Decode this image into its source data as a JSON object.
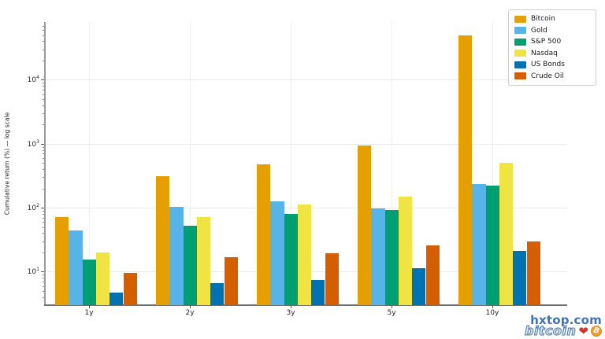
{
  "watermark": {
    "site": "hxtop.com",
    "logo_text": "bitcoin",
    "heart": "❤",
    "coin_letter": "B"
  },
  "chart_data": {
    "type": "bar",
    "title": "",
    "xlabel": "",
    "ylabel": "Cumulative return (%) — log scale",
    "yscale": "log",
    "ylim": [
      3,
      80000
    ],
    "ytick_exponents": [
      1,
      2,
      3,
      4
    ],
    "grid": true,
    "legend_position": "upper right",
    "categories": [
      "1y",
      "2y",
      "3y",
      "5y",
      "10y"
    ],
    "series": [
      {
        "name": "Bitcoin",
        "color": "#E69F00",
        "values": [
          72,
          310,
          480,
          940,
          49000
        ]
      },
      {
        "name": "Gold",
        "color": "#56B4E9",
        "values": [
          44,
          103,
          127,
          98,
          232
        ]
      },
      {
        "name": "S&P 500",
        "color": "#009E73",
        "values": [
          15.5,
          53,
          81,
          93,
          224
        ]
      },
      {
        "name": "Nasdaq",
        "color": "#F0E442",
        "values": [
          20,
          71,
          112,
          150,
          500
        ]
      },
      {
        "name": "US Bonds",
        "color": "#0072B2",
        "values": [
          4.7,
          6.6,
          7.5,
          11.4,
          21
        ]
      },
      {
        "name": "Crude Oil",
        "color": "#D55E00",
        "values": [
          9.7,
          17,
          19.5,
          25.5,
          29.5
        ]
      }
    ]
  }
}
